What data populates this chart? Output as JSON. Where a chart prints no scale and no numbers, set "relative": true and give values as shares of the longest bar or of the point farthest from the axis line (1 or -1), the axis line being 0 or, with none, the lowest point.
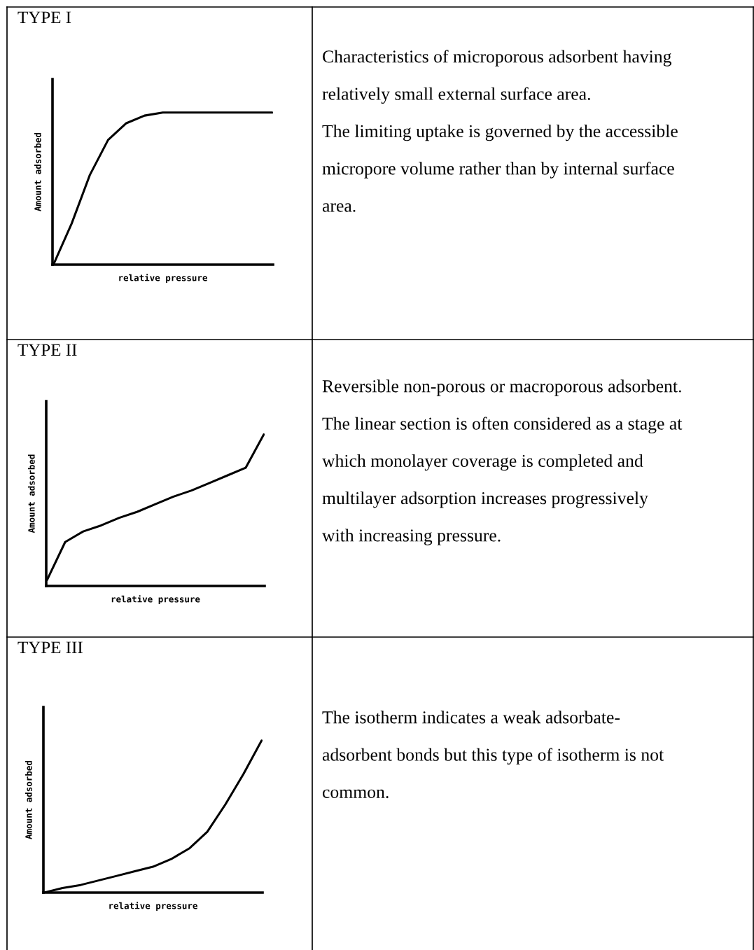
{
  "chart_data": [
    {
      "type": "line",
      "title": "TYPE I",
      "xlabel": "relative pressure",
      "ylabel": "Amount adsorbed",
      "relative": true,
      "categories": [
        null,
        null,
        null,
        null,
        null,
        null,
        null,
        null,
        null,
        null,
        null,
        null,
        null
      ],
      "series": [
        {
          "color": "#000000",
          "values": [
            0,
            0.27,
            0.59,
            0.82,
            0.93,
            0.98,
            1,
            1,
            1,
            1,
            1,
            1,
            1
          ]
        }
      ]
    },
    {
      "type": "other",
      "annotations": [
        "Characteristics of microporous adsorbent having",
        "relatively small external surface area.",
        "The limiting uptake is governed by the accessible",
        "micropore volume rather than by internal surface",
        "area."
      ]
    },
    {
      "type": "line",
      "title": "TYPE II",
      "xlabel": "relative pressure",
      "ylabel": "Amount adsorbed",
      "relative": true,
      "categories": [
        null,
        null,
        null,
        null,
        null,
        null,
        null,
        null,
        null,
        null,
        null,
        null,
        null
      ],
      "series": [
        {
          "color": "#000000",
          "values": [
            0.04,
            0.29,
            0.36,
            0.4,
            0.45,
            0.49,
            0.54,
            0.59,
            0.63,
            0.68,
            0.73,
            0.78,
            1.0
          ]
        }
      ]
    },
    {
      "type": "other",
      "annotations": [
        "Reversible non-porous or macroporous adsorbent.",
        "The linear section is often considered as a stage at",
        "which monolayer coverage is completed and",
        "multilayer adsorption increases progressively",
        "with increasing pressure."
      ]
    },
    {
      "type": "line",
      "title": "TYPE III",
      "xlabel": "relative pressure",
      "ylabel": "Amount adsorbed",
      "relative": true,
      "categories": [
        null,
        null,
        null,
        null,
        null,
        null,
        null,
        null,
        null,
        null,
        null,
        null,
        null
      ],
      "series": [
        {
          "color": "#000000",
          "values": [
            0,
            0.03,
            0.05,
            0.08,
            0.11,
            0.14,
            0.17,
            0.22,
            0.29,
            0.4,
            0.58,
            0.78,
            1.0
          ]
        }
      ]
    },
    {
      "type": "other",
      "annotations": [
        "The isotherm indicates a weak adsorbate-",
        "adsorbent bonds but this type of isotherm is not",
        "common."
      ]
    }
  ]
}
